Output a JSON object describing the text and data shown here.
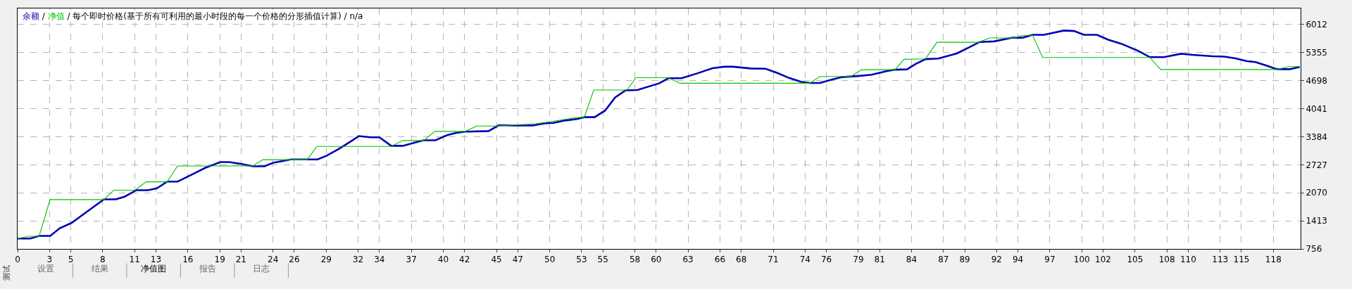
{
  "chart_data": {
    "type": "line",
    "title": "余额 / 净值 / 每个即时价格(基于所有可利用的最小时段的每一个价格的分形插值计算) / n/a",
    "annotations": [
      "测试",
      "设置",
      "结果",
      "净值图",
      "报告",
      "日志"
    ],
    "series": [
      {
        "color": "#0000b4",
        "x": [
          0,
          1.19,
          2.02,
          3.07,
          3.96,
          5.07,
          6.59,
          8.11,
          9.22,
          10.05,
          11.16,
          12.26,
          13.09,
          14.06,
          15.03,
          16.56,
          17.66,
          19.05,
          19.88,
          20.98,
          22.09,
          23.2,
          24.03,
          25.69,
          28.18,
          29.01,
          30.12,
          31.23,
          32.06,
          33.17,
          34.0,
          35.1,
          36.21,
          37.32,
          38.15,
          39.26,
          40.36,
          41.19,
          42.04,
          44.26,
          45.22,
          46.61,
          48.41,
          49.52,
          50.35,
          51.45,
          52.56,
          53.25,
          54.22,
          55.19,
          56.16,
          57.13,
          58.24,
          60.31,
          61.14,
          62.39,
          63.91,
          65.3,
          66.4,
          67.23,
          68.89,
          70.28,
          71.39,
          72.49,
          73.6,
          74.43,
          75.4,
          76.37,
          77.48,
          79.14,
          80.25,
          81.63,
          82.46,
          83.57,
          84.37,
          85.31,
          86.52,
          88.26,
          89.34,
          90.41,
          91.75,
          93.5,
          94.44,
          95.38,
          96.45,
          98.33,
          99.27,
          100.21,
          101.42,
          102.49,
          103.7,
          105.31,
          106.39,
          107.73,
          109.34,
          110.41,
          112.29,
          113.37,
          114.44,
          115.52,
          116.32,
          117.4,
          118.34,
          119.54,
          120.48
        ],
        "values": [
          998,
          998,
          1060,
          1060,
          1240,
          1365,
          1641,
          1918,
          1918,
          1980,
          2132,
          2132,
          2174,
          2333,
          2333,
          2520,
          2658,
          2789,
          2789,
          2748,
          2692,
          2692,
          2775,
          2852,
          2852,
          2935,
          3087,
          3260,
          3398,
          3370,
          3370,
          3170,
          3170,
          3246,
          3301,
          3301,
          3419,
          3474,
          3502,
          3516,
          3654,
          3647,
          3647,
          3695,
          3709,
          3764,
          3799,
          3841,
          3841,
          3993,
          4304,
          4470,
          4477,
          4636,
          4753,
          4753,
          4871,
          4989,
          5023,
          5023,
          4982,
          4975,
          4878,
          4760,
          4670,
          4643,
          4643,
          4712,
          4781,
          4809,
          4836,
          4919,
          4954,
          4961,
          5086,
          5200,
          5214,
          5334,
          5468,
          5603,
          5616,
          5703,
          5703,
          5770,
          5770,
          5871,
          5859,
          5770,
          5770,
          5656,
          5562,
          5394,
          5247,
          5247,
          5327,
          5300,
          5267,
          5260,
          5220,
          5153,
          5133,
          5045,
          4965,
          4965,
          5019
        ]
      },
      {
        "color": "#00c000",
        "x": [
          0,
          1.05,
          2.02,
          3.05,
          8.11,
          9.03,
          11.02,
          12.07,
          14.06,
          15.03,
          22.09,
          23.06,
          27.21,
          28.13,
          35.1,
          36.21,
          38.15,
          39.2,
          42.04,
          43.15,
          44.81,
          48.69,
          50.35,
          52.28,
          53.25,
          54.14,
          57.27,
          58.1,
          61.14,
          62.25,
          74.43,
          75.4,
          78.31,
          79.28,
          82.46,
          83.29,
          85.31,
          86.38,
          90.28,
          91.35,
          93.63,
          94.44,
          95.38,
          96.32,
          106.39,
          107.41,
          118.34,
          119.41,
          120.48
        ],
        "values": [
          998,
          1053,
          1053,
          1911,
          1911,
          2132,
          2132,
          2326,
          2326,
          2699,
          2699,
          2845,
          2845,
          3156,
          3156,
          3294,
          3294,
          3509,
          3509,
          3633,
          3633,
          3688,
          3744,
          3827,
          3841,
          4477,
          4477,
          4767,
          4767,
          4636,
          4636,
          4795,
          4795,
          4954,
          4954,
          5196,
          5206,
          5596,
          5596,
          5696,
          5696,
          5757,
          5757,
          5240,
          5240,
          4958,
          4958,
          5025,
          5025
        ]
      }
    ],
    "xlim": [
      0,
      120.56
    ],
    "xticks": [
      0,
      3,
      5,
      8,
      11,
      13,
      16,
      19,
      21,
      24,
      26,
      29,
      32,
      34,
      37,
      40,
      42,
      45,
      47,
      50,
      53,
      55,
      58,
      60,
      63,
      66,
      68,
      71,
      74,
      76,
      79,
      81,
      84,
      87,
      89,
      92,
      94,
      97,
      100,
      102,
      105,
      108,
      110,
      113,
      115,
      118
    ],
    "ylim": [
      756,
      6388
    ],
    "yticks": [
      756,
      1413,
      2070,
      2727,
      3384,
      4041,
      4698,
      5355,
      6012
    ],
    "grid": true,
    "marker": "none",
    "line_style": "solid"
  }
}
